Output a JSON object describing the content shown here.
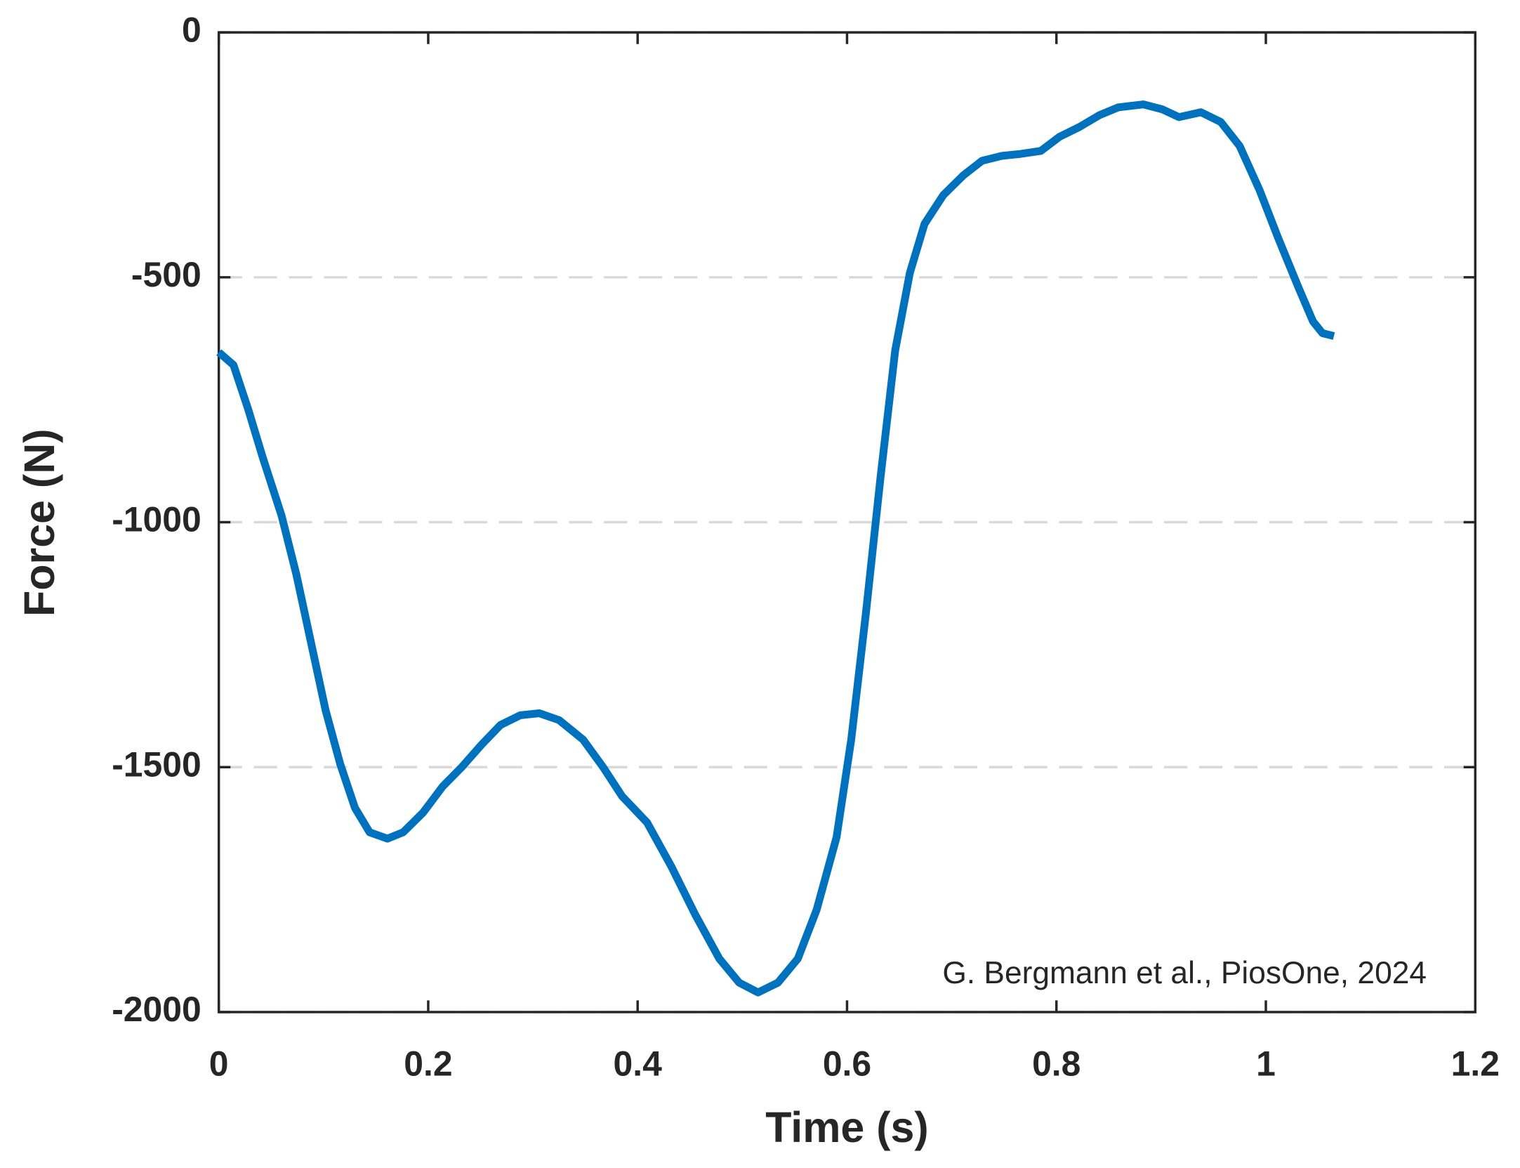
{
  "chart_data": {
    "type": "line",
    "xlabel": "Time (s)",
    "ylabel": "Force (N)",
    "annotation": "G. Bergmann et al., PiosOne, 2024",
    "x": [
      0,
      0.014,
      0.028,
      0.042,
      0.06,
      0.074,
      0.088,
      0.102,
      0.116,
      0.13,
      0.144,
      0.161,
      0.176,
      0.195,
      0.214,
      0.232,
      0.251,
      0.269,
      0.288,
      0.306,
      0.325,
      0.348,
      0.367,
      0.385,
      0.409,
      0.432,
      0.455,
      0.478,
      0.497,
      0.515,
      0.534,
      0.553,
      0.571,
      0.59,
      0.604,
      0.618,
      0.632,
      0.646,
      0.66,
      0.674,
      0.692,
      0.711,
      0.729,
      0.748,
      0.766,
      0.785,
      0.803,
      0.822,
      0.841,
      0.859,
      0.883,
      0.901,
      0.917,
      0.938,
      0.957,
      0.975,
      0.994,
      1.012,
      1.031,
      1.045,
      1.054,
      1.065
    ],
    "series": [
      {
        "color": "#0072bd",
        "values": [
          -653,
          -679,
          -769,
          -868,
          -987,
          -1106,
          -1245,
          -1384,
          -1494,
          -1583,
          -1633,
          -1646,
          -1633,
          -1593,
          -1539,
          -1500,
          -1454,
          -1414,
          -1394,
          -1390,
          -1404,
          -1444,
          -1500,
          -1559,
          -1613,
          -1702,
          -1801,
          -1891,
          -1940,
          -1960,
          -1940,
          -1891,
          -1791,
          -1643,
          -1444,
          -1186,
          -908,
          -649,
          -491,
          -391,
          -332,
          -292,
          -262,
          -252,
          -248,
          -242,
          -213,
          -193,
          -169,
          -153,
          -147,
          -157,
          -173,
          -163,
          -183,
          -232,
          -322,
          -421,
          -520,
          -590,
          -614,
          -620
        ]
      }
    ],
    "xlim": [
      0,
      1.2
    ],
    "xticks": [
      0,
      0.2,
      0.4,
      0.6,
      0.8,
      1,
      1.2
    ],
    "ylim": [
      -2000,
      0
    ],
    "yticks": [
      0,
      -500,
      -1000,
      -1500,
      -2000
    ],
    "grid": true
  }
}
